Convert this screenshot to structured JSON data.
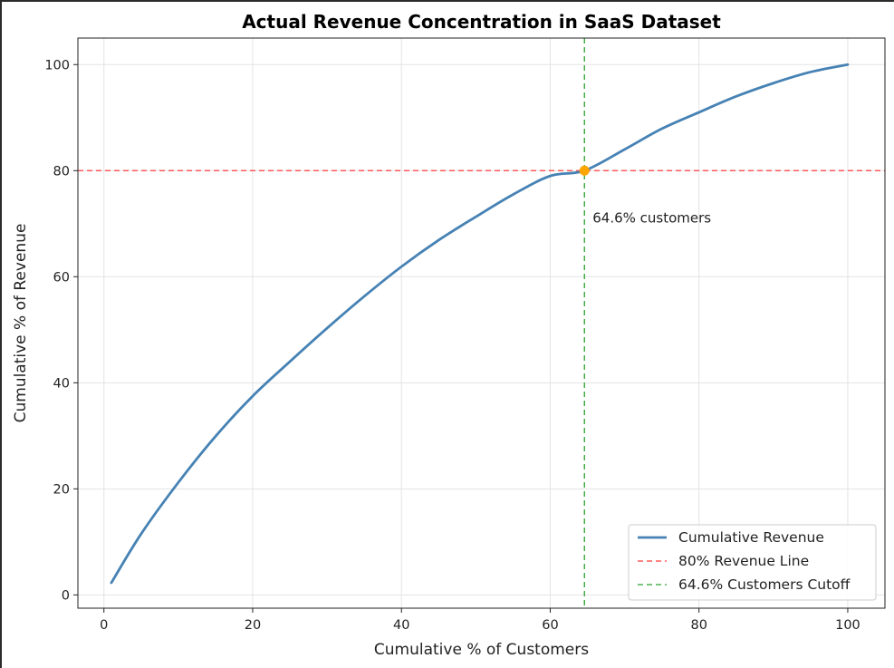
{
  "chart_data": {
    "type": "line",
    "title": "Actual Revenue Concentration in SaaS Dataset",
    "xlabel": "Cumulative % of Customers",
    "ylabel": "Cumulative % of Revenue",
    "xlim": [
      -3.5,
      105
    ],
    "ylim": [
      -2.5,
      105
    ],
    "xticks": [
      0,
      20,
      40,
      60,
      80,
      100
    ],
    "yticks": [
      0,
      20,
      40,
      60,
      80,
      100
    ],
    "grid": true,
    "legend_position": "bottom-right",
    "series": [
      {
        "name": "Cumulative Revenue",
        "style": "solid",
        "color": "#4682b4",
        "x": [
          1,
          5,
          10,
          15,
          20,
          25,
          30,
          35,
          40,
          45,
          50,
          55,
          60,
          64.6,
          70,
          75,
          80,
          85,
          90,
          95,
          100
        ],
        "y": [
          2.3,
          11.5,
          21.2,
          29.9,
          37.5,
          44.0,
          50.3,
          56.3,
          61.9,
          66.9,
          71.3,
          75.5,
          79.0,
          80.0,
          84.0,
          87.9,
          91.0,
          94.0,
          96.5,
          98.6,
          100.0
        ]
      },
      {
        "name": "80% Revenue Line",
        "style": "dashed",
        "color": "#ff3b3b",
        "orientation": "horizontal",
        "value": 80
      },
      {
        "name": "64.6% Customers Cutoff",
        "style": "dashed",
        "color": "#2ca02c",
        "orientation": "vertical",
        "value": 64.6
      }
    ],
    "marker": {
      "x": 64.6,
      "y": 80,
      "color": "#ffa500"
    },
    "annotations": [
      {
        "text": "64.6% customers",
        "x": 64.6,
        "y": 80
      }
    ]
  }
}
